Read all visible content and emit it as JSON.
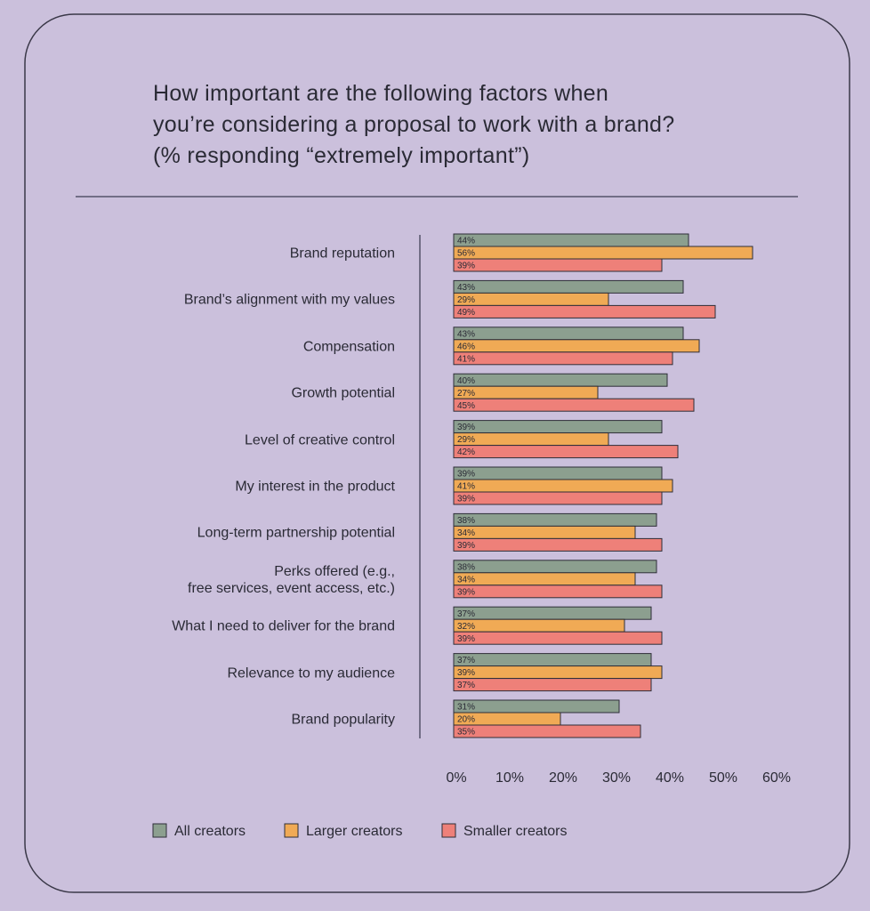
{
  "chart_data": {
    "type": "bar",
    "orientation": "horizontal",
    "title": "How important are the following factors when\nyou’re considering a proposal to work with a brand?\n(% responding “extremely important”)",
    "categories": [
      "Brand reputation",
      "Brand’s alignment with my values",
      "Compensation",
      "Growth potential",
      "Level of creative control",
      "My interest in the product",
      "Long-term partnership potential",
      "Perks offered (e.g.,\nfree services, event access, etc.)",
      "What I need to deliver for the brand",
      "Relevance to my audience",
      "Brand popularity"
    ],
    "series": [
      {
        "name": "All creators",
        "color": "#8c9f8f",
        "values": [
          44,
          43,
          43,
          40,
          39,
          39,
          38,
          38,
          37,
          37,
          31
        ],
        "value_labels": [
          "44%",
          "43%",
          "43%",
          "40%",
          "39%",
          "39%",
          "38%",
          "38%",
          "37%",
          "37%",
          "31%"
        ]
      },
      {
        "name": "Larger creators",
        "color": "#f0aa55",
        "values": [
          56,
          29,
          46,
          27,
          29,
          41,
          34,
          34,
          32,
          39,
          20
        ],
        "value_labels": [
          "56%",
          "29%",
          "46%",
          "27%",
          "29%",
          "41%",
          "34%",
          "34%",
          "32%",
          "39%",
          "20%"
        ]
      },
      {
        "name": "Smaller creators",
        "color": "#ee8079",
        "values": [
          39,
          49,
          41,
          45,
          42,
          39,
          39,
          39,
          39,
          37,
          35
        ],
        "value_labels": [
          "39%",
          "49%",
          "41%",
          "45%",
          "42%",
          "39%",
          "39%",
          "39%",
          "39%",
          "37%",
          "35%"
        ]
      }
    ],
    "xlim": [
      0,
      60
    ],
    "xticks": [
      {
        "value": 0,
        "label": "0%"
      },
      {
        "value": 10,
        "label": "10%"
      },
      {
        "value": 20,
        "label": "20%"
      },
      {
        "value": 30,
        "label": "30%"
      },
      {
        "value": 40,
        "label": "40%"
      },
      {
        "value": 50,
        "label": "50%"
      },
      {
        "value": 60,
        "label": "60%"
      }
    ],
    "grid": false,
    "legend": "bottom"
  }
}
